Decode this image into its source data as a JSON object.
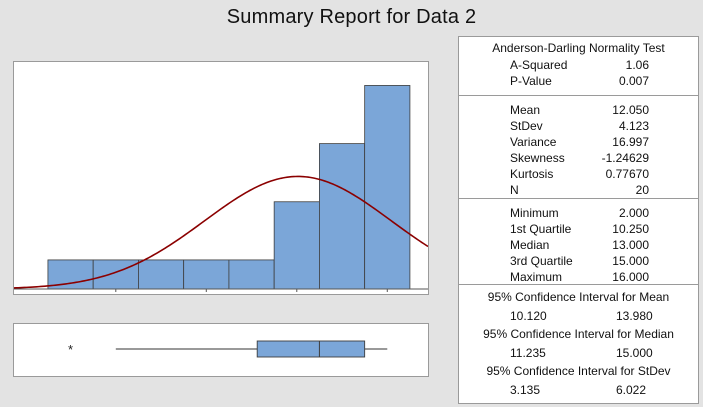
{
  "title": "Summary Report for Data 2",
  "chart_data": [
    {
      "type": "bar",
      "subtype": "histogram",
      "bins": [
        {
          "start": 1,
          "end": 3,
          "count": 1
        },
        {
          "start": 3,
          "end": 5,
          "count": 1
        },
        {
          "start": 5,
          "end": 7,
          "count": 1
        },
        {
          "start": 7,
          "end": 9,
          "count": 1
        },
        {
          "start": 9,
          "end": 11,
          "count": 1
        },
        {
          "start": 11,
          "end": 13,
          "count": 3
        },
        {
          "start": 13,
          "end": 15,
          "count": 5
        },
        {
          "start": 15,
          "end": 17,
          "count": 7
        }
      ],
      "x_ticks": [
        4,
        8,
        12,
        16
      ],
      "xlim": [
        -0.5,
        17.8
      ],
      "ylim": [
        0,
        7.6
      ],
      "fitted_normal": {
        "mean": 12.05,
        "stdev": 4.123,
        "n": 20,
        "bin_width": 2
      },
      "bar_color": "#7ba6d8",
      "curve_color": "#8b0000"
    },
    {
      "type": "boxplot",
      "whisker_low": 4,
      "q1": 10.25,
      "median": 13,
      "q3": 15,
      "whisker_high": 16,
      "outliers": [
        2
      ],
      "outlier_symbol": "*",
      "box_color": "#7ba6d8"
    }
  ],
  "stats": {
    "ad_title": "Anderson-Darling Normality Test",
    "ad_rows": [
      {
        "label": "A-Squared",
        "value": "1.06"
      },
      {
        "label": "P-Value",
        "value": "0.007"
      }
    ],
    "moment_rows": [
      {
        "label": "Mean",
        "value": "12.050"
      },
      {
        "label": "StDev",
        "value": "4.123"
      },
      {
        "label": "Variance",
        "value": "16.997"
      },
      {
        "label": "Skewness",
        "value": "-1.24629"
      },
      {
        "label": "Kurtosis",
        "value": "0.77670"
      },
      {
        "label": "N",
        "value": "20"
      }
    ],
    "quartile_rows": [
      {
        "label": "Minimum",
        "value": "2.000"
      },
      {
        "label": "1st Quartile",
        "value": "10.250"
      },
      {
        "label": "Median",
        "value": "13.000"
      },
      {
        "label": "3rd Quartile",
        "value": "15.000"
      },
      {
        "label": "Maximum",
        "value": "16.000"
      }
    ],
    "ci": [
      {
        "title": "95% Confidence Interval for Mean",
        "lower": "10.120",
        "upper": "13.980"
      },
      {
        "title": "95% Confidence Interval for Median",
        "lower": "11.235",
        "upper": "15.000"
      },
      {
        "title": "95% Confidence Interval for StDev",
        "lower": "3.135",
        "upper": "6.022"
      }
    ]
  }
}
